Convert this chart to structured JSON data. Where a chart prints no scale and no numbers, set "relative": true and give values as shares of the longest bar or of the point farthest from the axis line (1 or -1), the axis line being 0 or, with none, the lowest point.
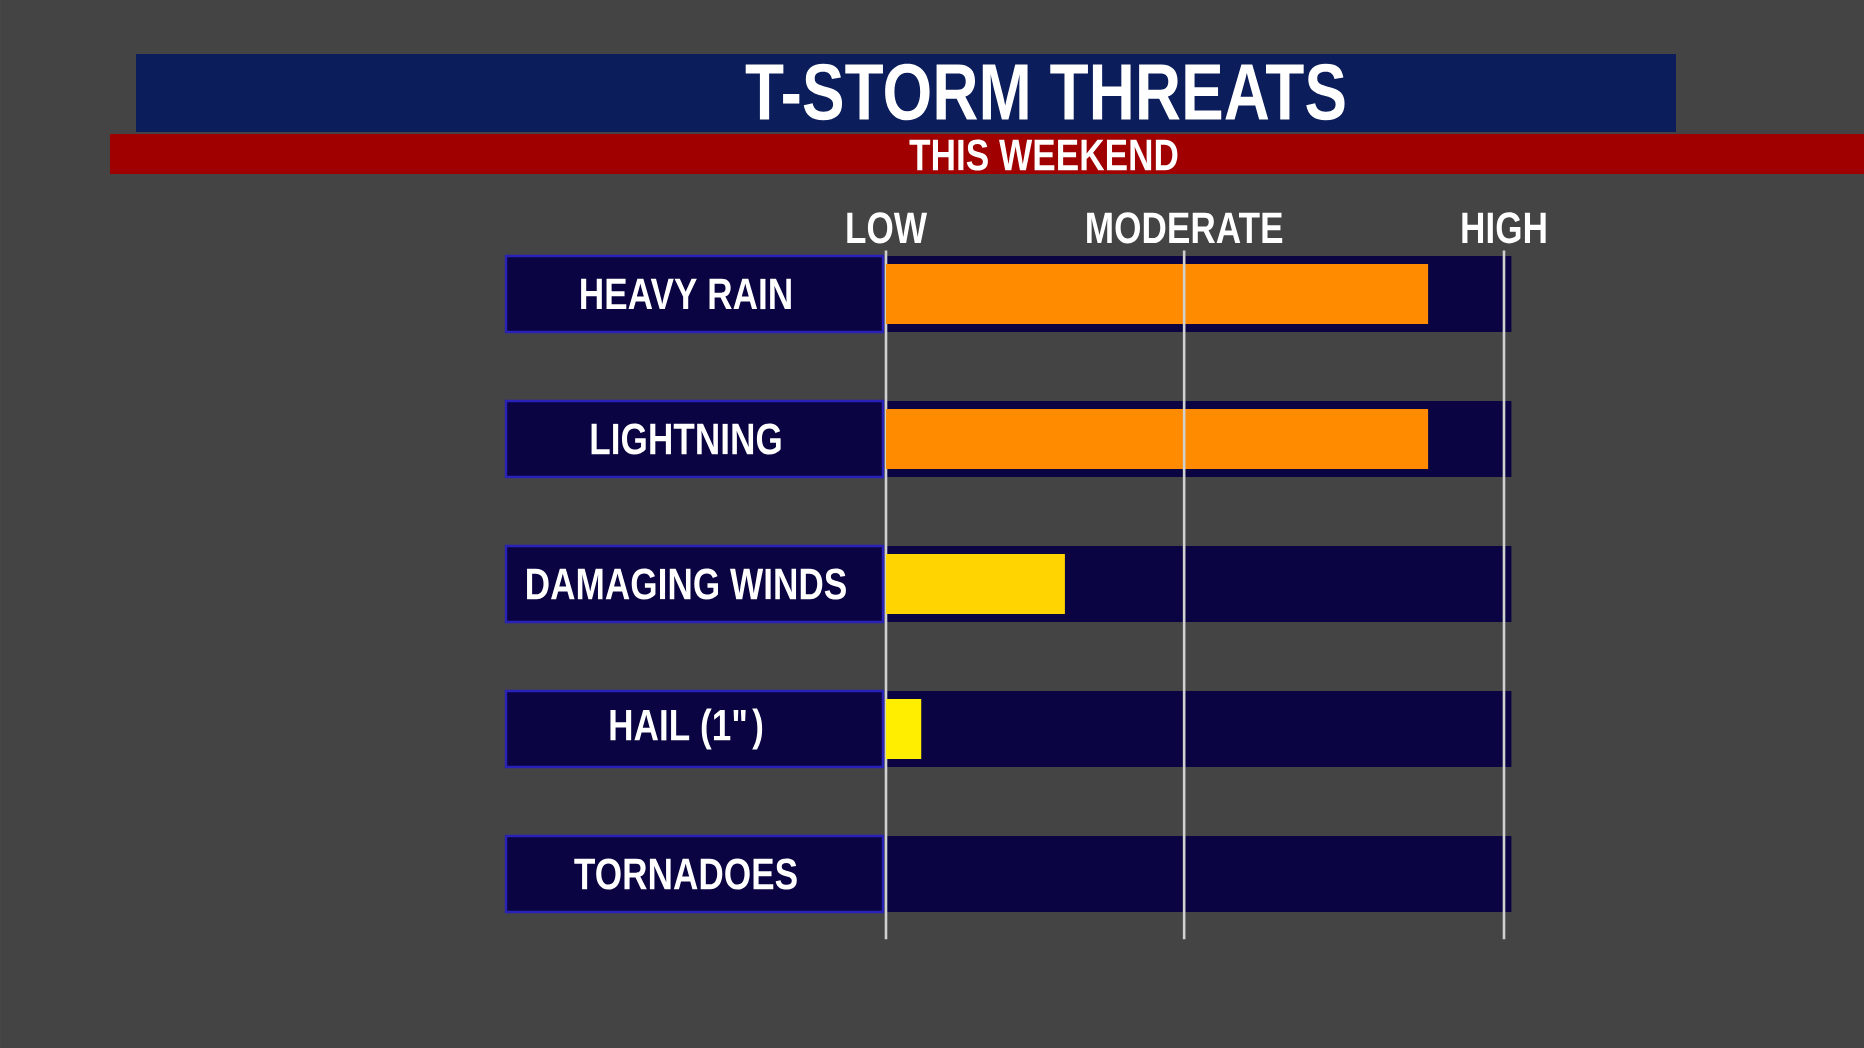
{
  "chart_data": {
    "type": "bar",
    "orientation": "horizontal",
    "relative": true,
    "title": "T-STORM THREATS",
    "subtitle": "THIS WEEKEND",
    "categories": [
      "HEAVY RAIN",
      "LIGHTNING",
      "DAMAGING WINDS",
      "HAIL (1\")",
      "TORNADOES"
    ],
    "values": [
      1,
      1,
      0.33,
      0.065,
      0
    ],
    "colors": [
      "#ff8c00",
      "#ff8c00",
      "#ffd400",
      "#ffee00",
      "#ffee00"
    ],
    "grid": "y",
    "annotations": [
      "LOW"
    ],
    "ref_lines": [
      {
        "axis": "x",
        "value": 0.55,
        "label": "MODERATE",
        "color": "#d0d0d0"
      },
      {
        "axis": "x",
        "value": 1.14,
        "label": "HIGH",
        "color": "#d0d0d0"
      }
    ]
  }
}
